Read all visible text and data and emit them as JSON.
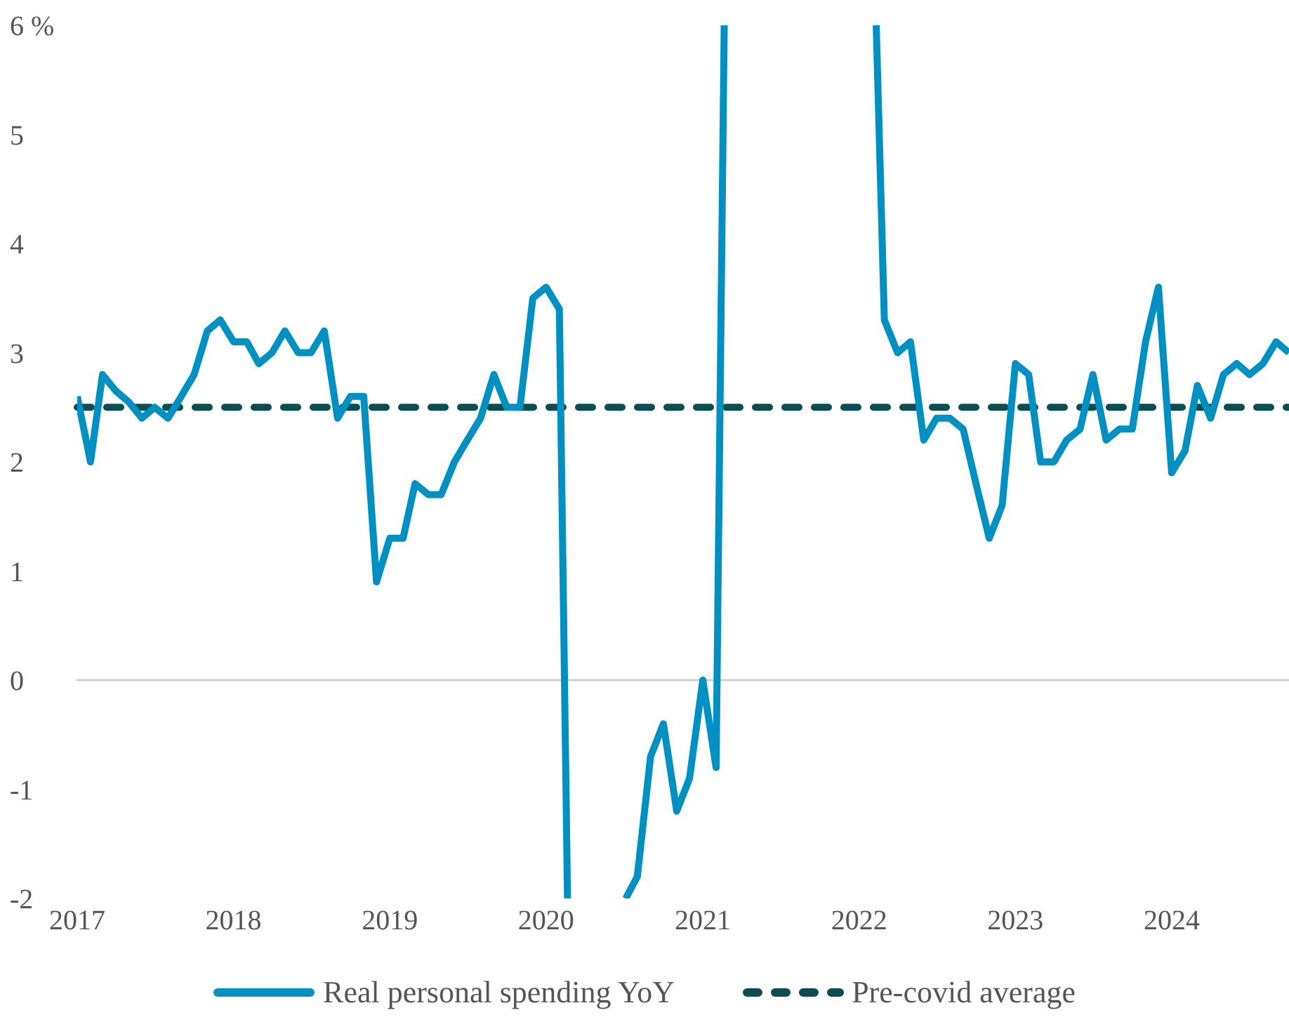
{
  "chart_data": {
    "type": "line",
    "xlim": [
      "2017-01",
      "2024-10"
    ],
    "xticks": [
      "2017",
      "2018",
      "2019",
      "2020",
      "2021",
      "2022",
      "2023",
      "2024"
    ],
    "ylim": [
      -2,
      6
    ],
    "yticks": [
      -2,
      -1,
      0,
      1,
      2,
      3,
      4,
      5,
      {
        "value": 6,
        "label": "6 %"
      }
    ],
    "grid": false,
    "legend": "bottom",
    "marker": "none",
    "series": [
      {
        "name": "Real personal spending YoY",
        "color": "#0090c1",
        "line_style": "solid",
        "x": [
          "2017-01",
          "2017-02",
          "2017-03",
          "2017-04",
          "2017-05",
          "2017-06",
          "2017-07",
          "2017-08",
          "2017-09",
          "2017-10",
          "2017-11",
          "2017-12",
          "2018-01",
          "2018-02",
          "2018-03",
          "2018-04",
          "2018-05",
          "2018-06",
          "2018-07",
          "2018-08",
          "2018-09",
          "2018-10",
          "2018-11",
          "2018-12",
          "2019-01",
          "2019-02",
          "2019-03",
          "2019-04",
          "2019-05",
          "2019-06",
          "2019-07",
          "2019-08",
          "2019-09",
          "2019-10",
          "2019-11",
          "2019-12",
          "2020-01",
          "2020-02",
          "2020-02-20",
          "2020-03",
          "2020-04",
          "2020-05",
          "2020-06",
          "2020-07",
          "2020-07-05",
          "2020-08",
          "2020-09",
          "2020-10",
          "2020-11",
          "2020-12",
          "2021-01",
          "2021-02",
          "2021-02-20",
          "2021-03",
          "2021-04",
          "2021-05",
          "2021-06",
          "2021-07",
          "2021-08",
          "2021-09",
          "2021-10",
          "2021-11",
          "2021-12",
          "2022-01",
          "2022-02",
          "2022-02-10",
          "2022-03",
          "2022-04",
          "2022-05",
          "2022-06",
          "2022-07",
          "2022-08",
          "2022-09",
          "2022-10",
          "2022-11",
          "2022-12",
          "2023-01",
          "2023-02",
          "2023-03",
          "2023-04",
          "2023-05",
          "2023-06",
          "2023-07",
          "2023-08",
          "2023-09",
          "2023-10",
          "2023-11",
          "2023-12",
          "2024-01",
          "2024-02",
          "2024-03",
          "2024-04",
          "2024-05",
          "2024-06",
          "2024-07",
          "2024-08",
          "2024-09",
          "2024-10"
        ],
        "values": [
          2.6,
          2.0,
          2.8,
          2.65,
          2.55,
          2.4,
          2.5,
          2.4,
          2.6,
          2.8,
          3.2,
          3.3,
          3.1,
          3.1,
          2.9,
          3.0,
          3.2,
          3.0,
          3.0,
          3.2,
          2.4,
          2.6,
          2.6,
          0.9,
          1.3,
          1.3,
          1.8,
          1.7,
          1.7,
          2.0,
          2.2,
          2.4,
          2.8,
          2.5,
          2.5,
          3.5,
          3.6,
          3.4,
          -2,
          null,
          null,
          null,
          null,
          null,
          -2,
          -1.8,
          -0.7,
          -0.4,
          -1.2,
          -0.9,
          0.0,
          -0.8,
          6,
          null,
          null,
          null,
          null,
          null,
          null,
          null,
          null,
          null,
          null,
          null,
          null,
          6,
          3.3,
          3.0,
          3.1,
          2.2,
          2.4,
          2.4,
          2.3,
          1.8,
          1.3,
          1.6,
          2.9,
          2.8,
          2.0,
          2.0,
          2.2,
          2.3,
          2.8,
          2.2,
          2.3,
          2.3,
          3.1,
          3.6,
          1.9,
          2.1,
          2.7,
          2.4,
          2.8,
          2.9,
          2.8,
          2.9,
          3.1,
          3.0
        ]
      }
    ],
    "ref_lines": [
      {
        "axis": "y",
        "value": 0,
        "color": "#d0d0d0",
        "line_style": "solid"
      },
      {
        "axis": "y",
        "value": 2.5,
        "label": "Pre-covid average",
        "color": "#0b4d52",
        "line_style": "dashed"
      }
    ]
  }
}
